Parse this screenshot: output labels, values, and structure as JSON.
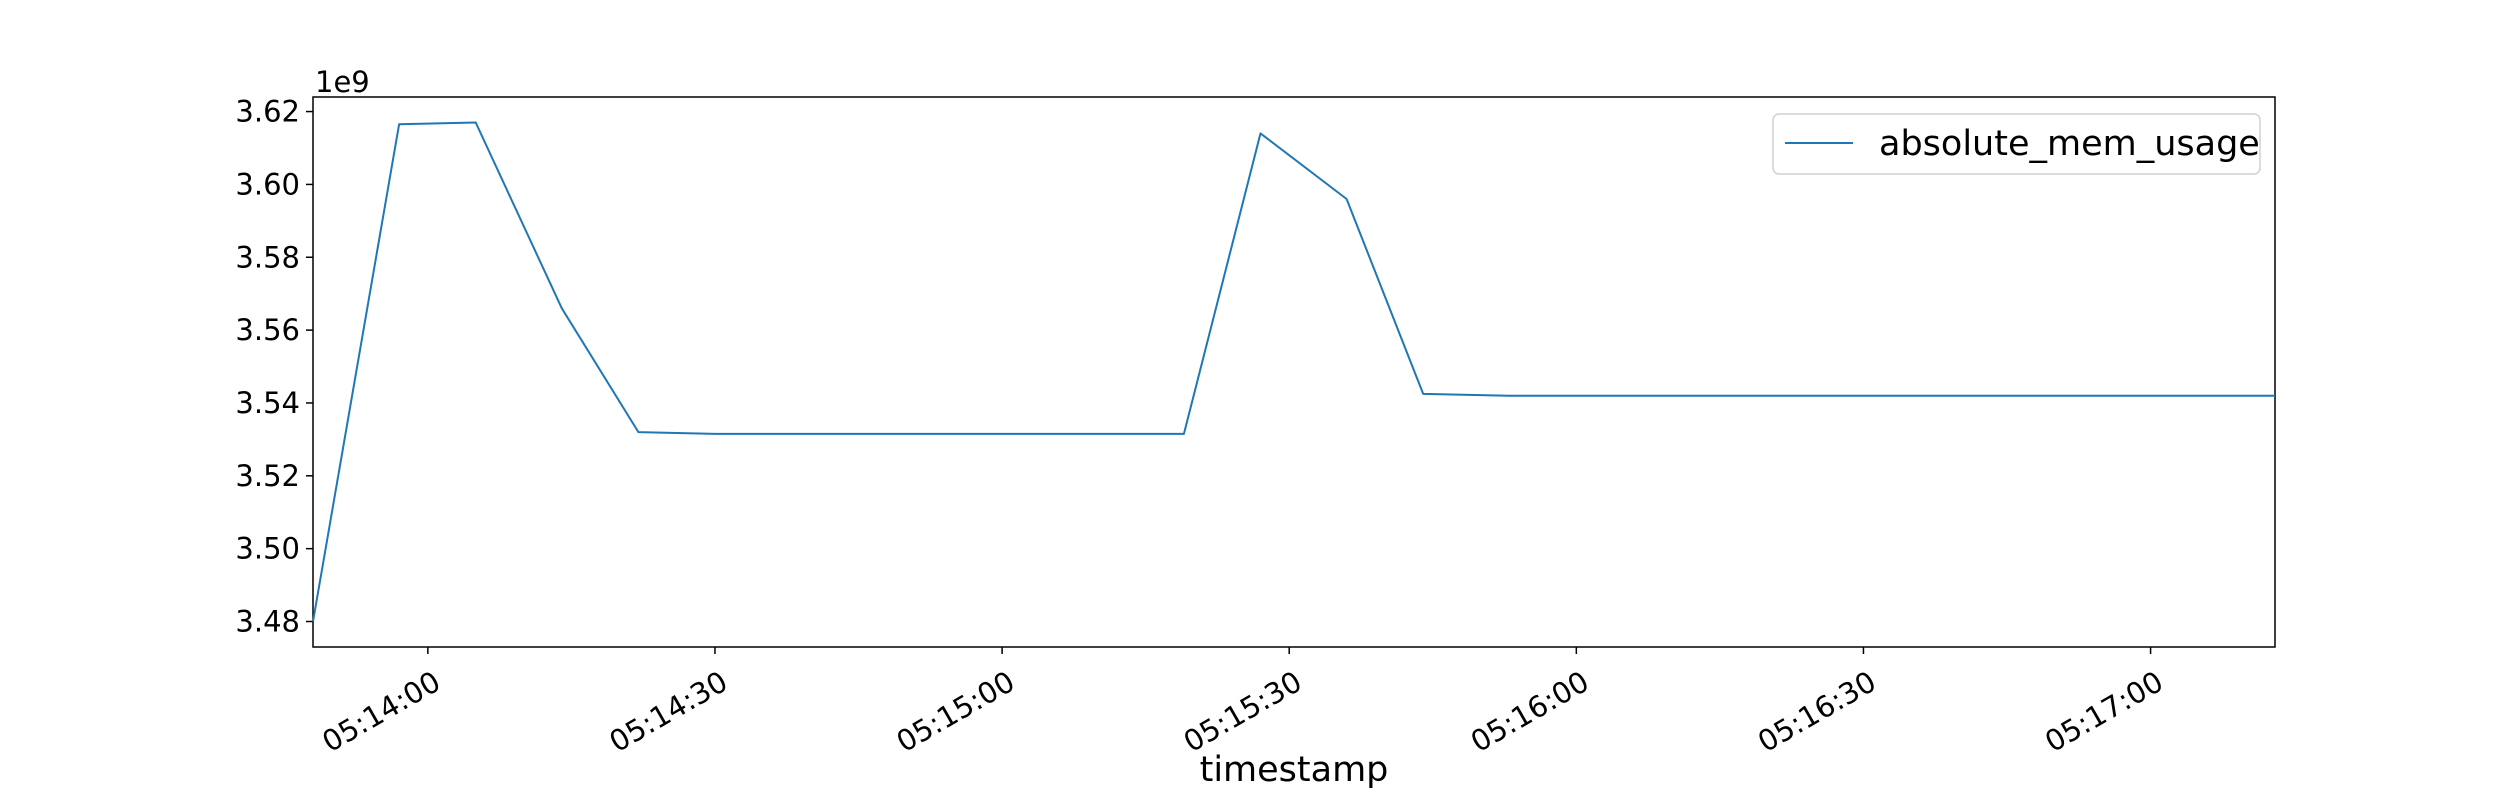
{
  "chart_data": {
    "type": "line",
    "title": "",
    "xlabel": "timestamp",
    "ylabel": "",
    "y_offset_label": "1e9",
    "x": [
      "05:13:48",
      "05:13:57",
      "05:14:05",
      "05:14:14",
      "05:14:22",
      "05:14:30",
      "05:15:19",
      "05:15:27",
      "05:15:36",
      "05:15:44",
      "05:15:53",
      "05:17:13"
    ],
    "series": [
      {
        "name": "absolute_mem_usage",
        "color": "#1f77b4",
        "values": [
          3.48,
          3.6165,
          3.617,
          3.566,
          3.532,
          3.5315,
          3.5315,
          3.614,
          3.596,
          3.5425,
          3.542,
          3.542
        ]
      }
    ],
    "xlim": [
      "05:13:48",
      "05:17:13"
    ],
    "ylim": [
      3.473,
      3.624
    ],
    "x_ticks": [
      "05:14:00",
      "05:14:30",
      "05:15:00",
      "05:15:30",
      "05:16:00",
      "05:16:30",
      "05:17:00"
    ],
    "y_ticks": [
      "3.48",
      "3.50",
      "3.52",
      "3.54",
      "3.56",
      "3.58",
      "3.60",
      "3.62"
    ],
    "grid": false,
    "legend_position": "top-right"
  }
}
